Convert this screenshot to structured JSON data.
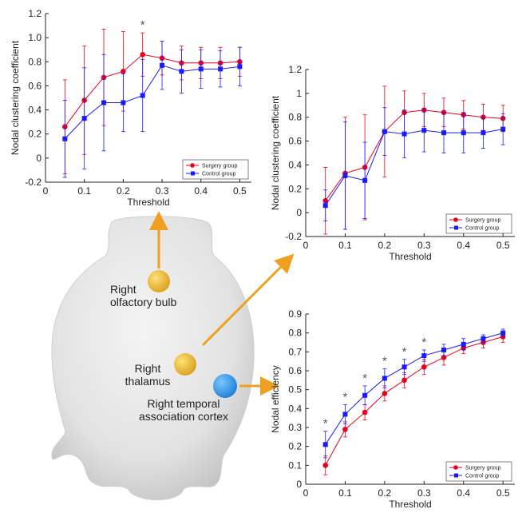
{
  "chart_data": [
    {
      "type": "line",
      "ylabel": "Nodal clustering coefficient",
      "xlabel": "Threshold",
      "x": [
        0.05,
        0.1,
        0.15,
        0.2,
        0.25,
        0.3,
        0.35,
        0.4,
        0.45,
        0.5
      ],
      "series": [
        {
          "name": "Surgery group",
          "color": "#e8001c",
          "marker": "circle",
          "values": [
            0.26,
            0.48,
            0.67,
            0.72,
            0.86,
            0.83,
            0.79,
            0.79,
            0.79,
            0.8
          ],
          "errors": [
            0.39,
            0.45,
            0.4,
            0.33,
            0.18,
            0.14,
            0.14,
            0.13,
            0.13,
            0.12
          ]
        },
        {
          "name": "Control group",
          "color": "#1a1aff",
          "marker": "square",
          "values": [
            0.16,
            0.33,
            0.46,
            0.46,
            0.52,
            0.77,
            0.72,
            0.74,
            0.74,
            0.76
          ],
          "errors": [
            0.32,
            0.42,
            0.4,
            0.24,
            0.3,
            0.2,
            0.18,
            0.16,
            0.15,
            0.16
          ]
        }
      ],
      "annotations": [
        {
          "x": 0.25,
          "text": "*"
        }
      ],
      "xlim": [
        0,
        0.53
      ],
      "xticks": [
        0,
        0.1,
        0.2,
        0.3,
        0.4,
        0.5
      ],
      "ylim": [
        -0.2,
        1.2
      ],
      "yticks": [
        -0.2,
        0,
        0.2,
        0.4,
        0.6,
        0.8,
        {
          "value": 1,
          "label": "1.0"
        },
        1.2
      ],
      "legend": "lower right"
    },
    {
      "type": "line",
      "ylabel": "Nodal clustering coefficient",
      "xlabel": "Threshold",
      "x": [
        0.05,
        0.1,
        0.15,
        0.2,
        0.25,
        0.3,
        0.35,
        0.4,
        0.45,
        0.5
      ],
      "series": [
        {
          "name": "Surgery group",
          "color": "#e8001c",
          "marker": "circle",
          "values": [
            0.1,
            0.33,
            0.38,
            0.68,
            0.84,
            0.86,
            0.84,
            0.82,
            0.8,
            0.79
          ],
          "errors": [
            0.28,
            0.47,
            0.44,
            0.38,
            0.18,
            0.14,
            0.12,
            0.12,
            0.11,
            0.11
          ]
        },
        {
          "name": "Control group",
          "color": "#1a1aff",
          "marker": "square",
          "values": [
            0.06,
            0.31,
            0.27,
            0.68,
            0.66,
            0.69,
            0.67,
            0.67,
            0.67,
            0.7
          ],
          "errors": [
            0.13,
            0.45,
            0.32,
            0.2,
            0.2,
            0.18,
            0.17,
            0.17,
            0.13,
            0.13
          ]
        }
      ],
      "annotations": [],
      "xlim": [
        0,
        0.53
      ],
      "xticks": [
        0,
        0.1,
        0.2,
        0.3,
        0.4,
        0.5
      ],
      "ylim": [
        -0.2,
        1.2
      ],
      "yticks": [
        -0.2,
        0,
        0.2,
        0.4,
        0.6,
        0.8,
        1,
        1.2
      ],
      "legend": "lower right"
    },
    {
      "type": "line",
      "ylabel": "Nodal efficiency",
      "xlabel": "Threshold",
      "x": [
        0.05,
        0.1,
        0.15,
        0.2,
        0.25,
        0.3,
        0.35,
        0.4,
        0.45,
        0.5
      ],
      "series": [
        {
          "name": "Surgery group",
          "color": "#e8001c",
          "marker": "circle",
          "values": [
            0.1,
            0.29,
            0.38,
            0.48,
            0.55,
            0.62,
            0.67,
            0.72,
            0.75,
            0.78
          ],
          "errors": [
            0.05,
            0.04,
            0.04,
            0.04,
            0.04,
            0.04,
            0.04,
            0.03,
            0.03,
            0.03
          ]
        },
        {
          "name": "Control group",
          "color": "#1a1aff",
          "marker": "square",
          "values": [
            0.21,
            0.37,
            0.47,
            0.56,
            0.62,
            0.68,
            0.71,
            0.74,
            0.77,
            0.8
          ],
          "errors": [
            0.07,
            0.05,
            0.05,
            0.05,
            0.04,
            0.03,
            0.03,
            0.03,
            0.02,
            0.02
          ]
        }
      ],
      "annotations": [
        {
          "x": 0.05,
          "text": "*"
        },
        {
          "x": 0.1,
          "text": "*"
        },
        {
          "x": 0.15,
          "text": "*"
        },
        {
          "x": 0.2,
          "text": "*"
        },
        {
          "x": 0.25,
          "text": "*"
        },
        {
          "x": 0.3,
          "text": "*"
        }
      ],
      "xlim": [
        0,
        0.53
      ],
      "xticks": [
        0,
        0.1,
        0.2,
        0.3,
        0.4,
        0.5
      ],
      "ylim": [
        0,
        0.9
      ],
      "yticks": [
        0,
        0.1,
        0.2,
        0.3,
        0.4,
        0.5,
        0.6,
        0.7,
        0.8,
        0.9
      ],
      "legend": "lower right"
    }
  ],
  "illustration": {
    "labels": [
      {
        "lines": [
          "Right",
          "olfactory bulb"
        ]
      },
      {
        "lines": [
          "Right",
          "thalamus"
        ]
      },
      {
        "lines": [
          "Right temporal",
          "association cortex"
        ]
      }
    ]
  }
}
